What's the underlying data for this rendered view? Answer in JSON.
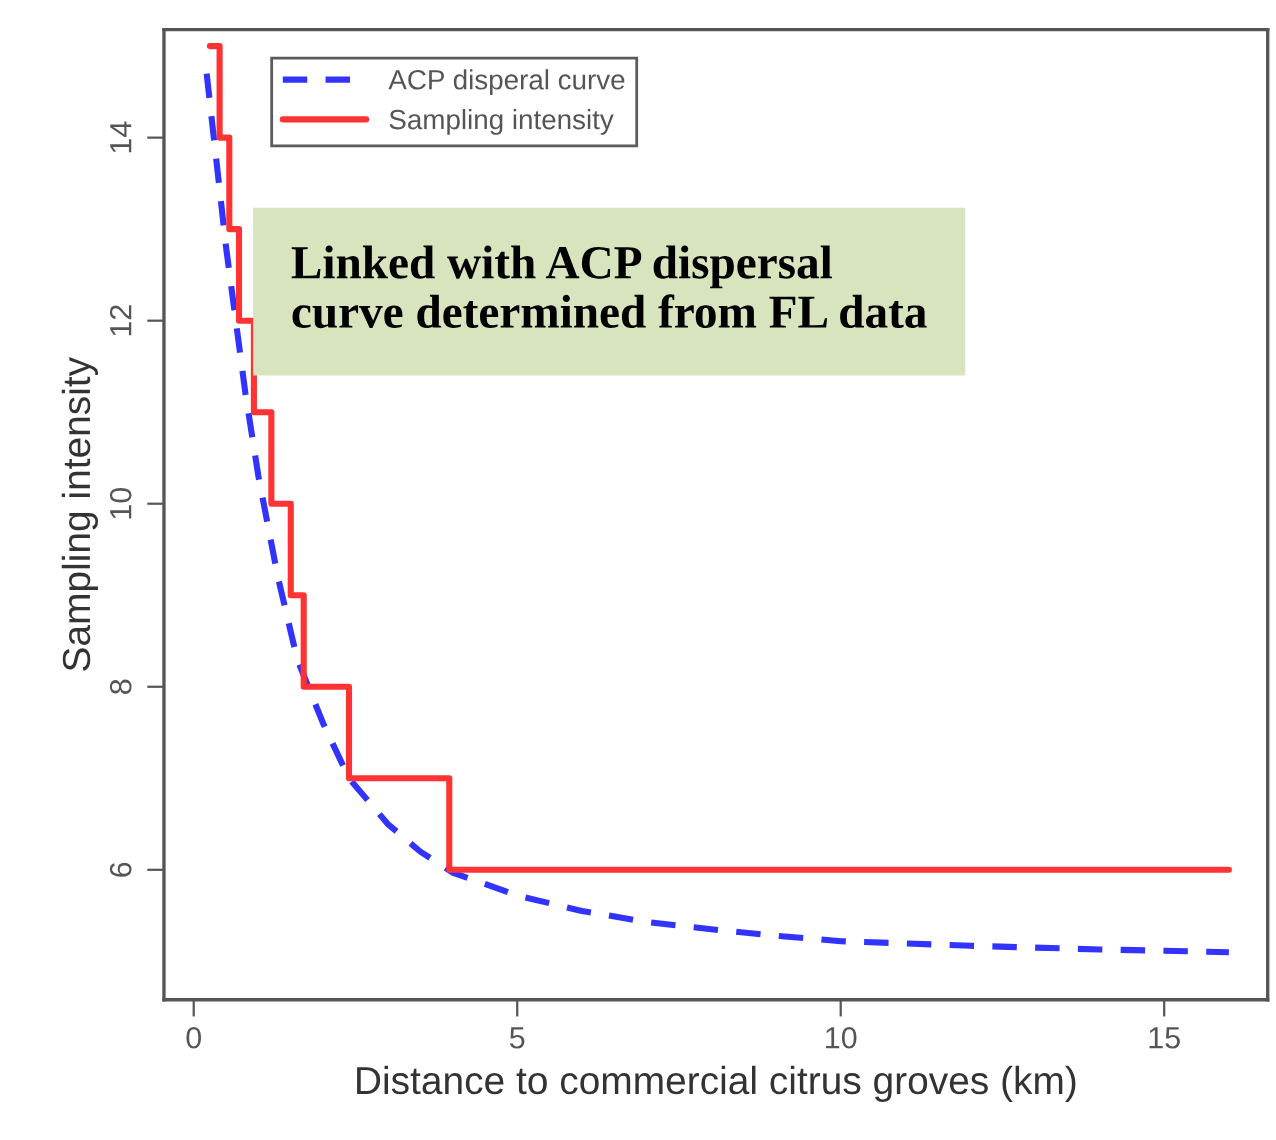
{
  "chart_data": {
    "type": "line",
    "xlabel": "Distance to commercial citrus groves (km)",
    "ylabel": "Sampling intensity",
    "series": [
      {
        "name": "ACP disperal curve",
        "color": "#3333ff",
        "line_style": "dashed",
        "x": [
          0.2,
          0.5,
          0.8,
          1.0,
          1.3,
          1.6,
          2.0,
          2.4,
          3.0,
          3.5,
          4.0,
          5,
          6,
          7,
          8,
          9,
          10,
          12,
          14,
          16
        ],
        "values": [
          14.7,
          12.8,
          11.2,
          10.3,
          9.2,
          8.3,
          7.6,
          7.0,
          6.5,
          6.2,
          5.97,
          5.72,
          5.55,
          5.43,
          5.35,
          5.28,
          5.22,
          5.17,
          5.13,
          5.1
        ]
      },
      {
        "name": "Sampling intensity",
        "type": "step",
        "color": "#ff3333",
        "line_style": "solid",
        "x": [
          0.25,
          0.4,
          0.55,
          0.7,
          0.93,
          1.2,
          1.5,
          1.7,
          2.4,
          3.95,
          16
        ],
        "values": [
          15,
          14,
          13,
          12,
          11,
          10,
          9,
          8,
          7,
          6,
          6
        ]
      }
    ],
    "xlim": [
      -0.46,
      16.6
    ],
    "xticks": [
      0,
      5,
      10,
      15
    ],
    "ylim": [
      4.58,
      15.18
    ],
    "yticks": [
      6,
      8,
      10,
      12,
      14
    ],
    "grid": false,
    "legend": "top left",
    "marker": "none",
    "annotations": [
      "Linked with ACP dispersal\ncurve determined from FL data"
    ]
  }
}
